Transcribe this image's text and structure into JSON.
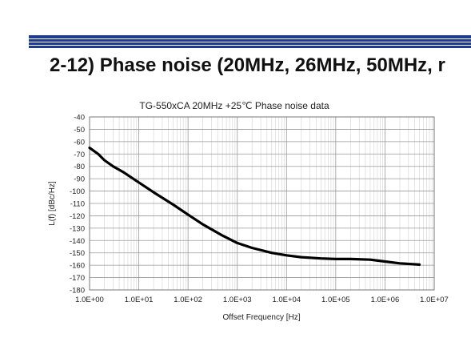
{
  "heading": "2-12) Phase noise (20MHz, 26MHz, 50MHz, r",
  "colors": {
    "title_bar": "#1f3b8c",
    "curve": "#000000",
    "grid_major": "#9a9a9a",
    "grid_minor": "#d8d8d8"
  },
  "chart_data": {
    "type": "line",
    "title": "TG-550xCA 20MHz +25℃ Phase noise data",
    "xlabel": "Offset Frequency [Hz]",
    "ylabel": "L(f) [dBc/Hz]",
    "x_scale": "log",
    "xlim": [
      1,
      10000000
    ],
    "ylim": [
      -180,
      -40
    ],
    "grid": true,
    "x_ticks": [
      {
        "value": 1,
        "label": "1.0E+00"
      },
      {
        "value": 10,
        "label": "1.0E+01"
      },
      {
        "value": 100,
        "label": "1.0E+02"
      },
      {
        "value": 1000,
        "label": "1.0E+03"
      },
      {
        "value": 10000,
        "label": "1.0E+04"
      },
      {
        "value": 100000,
        "label": "1.0E+05"
      },
      {
        "value": 1000000,
        "label": "1.0E+06"
      },
      {
        "value": 10000000,
        "label": "1.0E+07"
      }
    ],
    "y_ticks": [
      {
        "value": -40,
        "label": "-40"
      },
      {
        "value": -50,
        "label": "-50"
      },
      {
        "value": -60,
        "label": "-60"
      },
      {
        "value": -70,
        "label": "-70"
      },
      {
        "value": -80,
        "label": "-80"
      },
      {
        "value": -90,
        "label": "-90"
      },
      {
        "value": -100,
        "label": "-100"
      },
      {
        "value": -110,
        "label": "-110"
      },
      {
        "value": -120,
        "label": "-120"
      },
      {
        "value": -130,
        "label": "-130"
      },
      {
        "value": -140,
        "label": "-140"
      },
      {
        "value": -150,
        "label": "-150"
      },
      {
        "value": -160,
        "label": "-160"
      },
      {
        "value": -170,
        "label": "-170"
      },
      {
        "value": -180,
        "label": "-180"
      }
    ],
    "series": [
      {
        "x": [
          1,
          1.5,
          2,
          3,
          5,
          10,
          20,
          50,
          100,
          200,
          500,
          1000,
          2000,
          5000,
          10000,
          20000,
          50000,
          100000,
          200000,
          500000,
          1000000,
          2000000,
          5000000
        ],
        "y": [
          -65,
          -70,
          -75,
          -80,
          -85,
          -93,
          -101,
          -111,
          -119,
          -127,
          -136,
          -142,
          -146,
          -150,
          -152,
          -153.5,
          -154.5,
          -155,
          -155,
          -155.5,
          -157,
          -158.5,
          -159.5
        ]
      }
    ]
  }
}
